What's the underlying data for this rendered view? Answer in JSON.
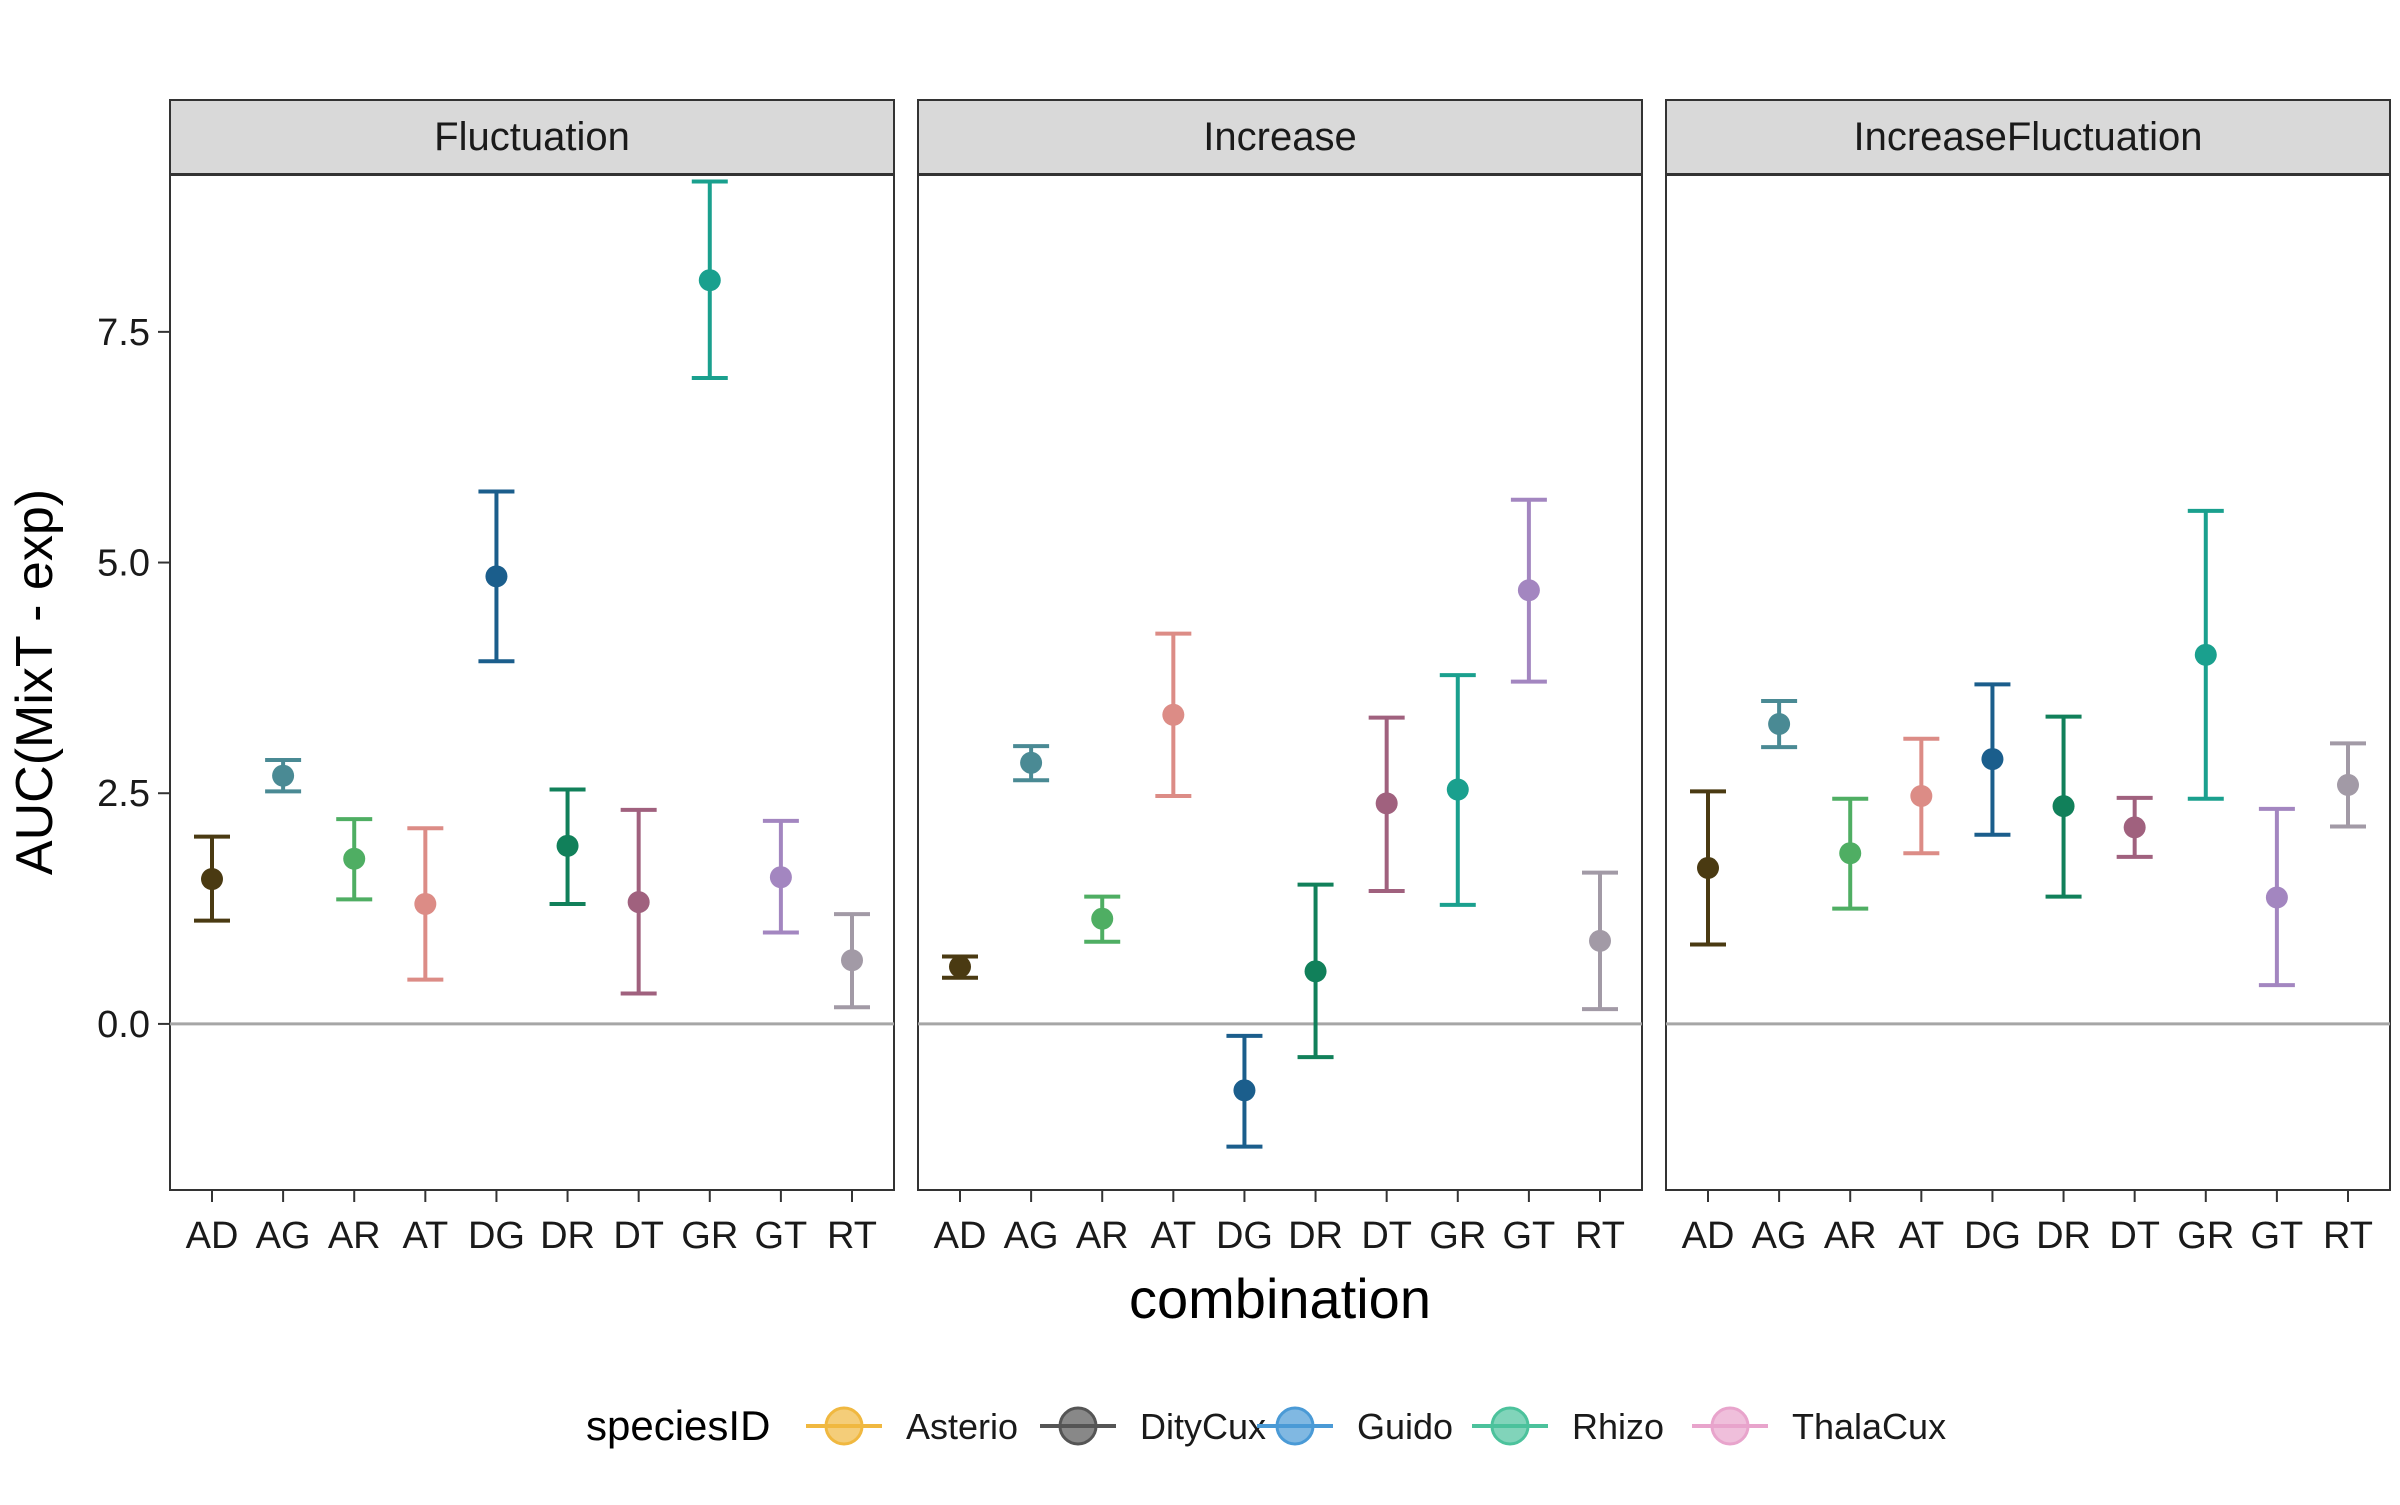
{
  "chart_data": {
    "type": "scatter",
    "subtype": "point-with-errorbars, faceted",
    "xlabel": "combination",
    "ylabel": "AUC(MixT - exp)",
    "ylim": [
      -1.8,
      9.2
    ],
    "yticks": [
      0.0,
      2.5,
      5.0,
      7.5
    ],
    "ytick_labels": [
      "0.0",
      "2.5",
      "5.0",
      "7.5"
    ],
    "reference_line_y": 0,
    "grid": false,
    "categories": [
      "AD",
      "AG",
      "AR",
      "AT",
      "DG",
      "DR",
      "DT",
      "GR",
      "GT",
      "RT"
    ],
    "category_colors": {
      "AD": "#4a3a12",
      "AG": "#4a8a94",
      "AR": "#4fae63",
      "AT": "#dc8c86",
      "DG": "#1b5e8c",
      "DR": "#11805a",
      "DT": "#a0617e",
      "GR": "#1aa08e",
      "GT": "#a386c0",
      "RT": "#a29aa6"
    },
    "legend": {
      "title": "speciesID",
      "placement": "bottom",
      "items": [
        {
          "label": "Asterio",
          "color": "#f0b840"
        },
        {
          "label": "DityCux",
          "color": "#555555"
        },
        {
          "label": "Guido",
          "color": "#4a9ad6"
        },
        {
          "label": "Rhizo",
          "color": "#4cc29c"
        },
        {
          "label": "ThalaCux",
          "color": "#e8a4cc"
        }
      ]
    },
    "facets": [
      {
        "title": "Fluctuation",
        "points": [
          {
            "x": "AD",
            "y": 1.57,
            "ymin": 1.12,
            "ymax": 2.03
          },
          {
            "x": "AG",
            "y": 2.69,
            "ymin": 2.52,
            "ymax": 2.86
          },
          {
            "x": "AR",
            "y": 1.79,
            "ymin": 1.35,
            "ymax": 2.22
          },
          {
            "x": "AT",
            "y": 1.3,
            "ymin": 0.48,
            "ymax": 2.12
          },
          {
            "x": "DG",
            "y": 4.85,
            "ymin": 3.93,
            "ymax": 5.77
          },
          {
            "x": "DR",
            "y": 1.93,
            "ymin": 1.3,
            "ymax": 2.54
          },
          {
            "x": "DT",
            "y": 1.32,
            "ymin": 0.33,
            "ymax": 2.32
          },
          {
            "x": "GR",
            "y": 8.06,
            "ymin": 7.0,
            "ymax": 9.13
          },
          {
            "x": "GT",
            "y": 1.59,
            "ymin": 0.99,
            "ymax": 2.2
          },
          {
            "x": "RT",
            "y": 0.69,
            "ymin": 0.18,
            "ymax": 1.19
          }
        ]
      },
      {
        "title": "Increase",
        "points": [
          {
            "x": "AD",
            "y": 0.62,
            "ymin": 0.5,
            "ymax": 0.73
          },
          {
            "x": "AG",
            "y": 2.83,
            "ymin": 2.64,
            "ymax": 3.01
          },
          {
            "x": "AR",
            "y": 1.14,
            "ymin": 0.89,
            "ymax": 1.38
          },
          {
            "x": "AT",
            "y": 3.35,
            "ymin": 2.47,
            "ymax": 4.23
          },
          {
            "x": "DG",
            "y": -0.72,
            "ymin": -1.33,
            "ymax": -0.13
          },
          {
            "x": "DR",
            "y": 0.57,
            "ymin": -0.36,
            "ymax": 1.51
          },
          {
            "x": "DT",
            "y": 2.39,
            "ymin": 1.44,
            "ymax": 3.32
          },
          {
            "x": "GR",
            "y": 2.54,
            "ymin": 1.29,
            "ymax": 3.78
          },
          {
            "x": "GT",
            "y": 4.7,
            "ymin": 3.71,
            "ymax": 5.68
          },
          {
            "x": "RT",
            "y": 0.9,
            "ymin": 0.16,
            "ymax": 1.64
          }
        ]
      },
      {
        "title": "IncreaseFluctuation",
        "points": [
          {
            "x": "AD",
            "y": 1.69,
            "ymin": 0.86,
            "ymax": 2.52
          },
          {
            "x": "AG",
            "y": 3.25,
            "ymin": 3.0,
            "ymax": 3.5
          },
          {
            "x": "AR",
            "y": 1.85,
            "ymin": 1.25,
            "ymax": 2.44
          },
          {
            "x": "AT",
            "y": 2.47,
            "ymin": 1.85,
            "ymax": 3.09
          },
          {
            "x": "DG",
            "y": 2.87,
            "ymin": 2.05,
            "ymax": 3.68
          },
          {
            "x": "DR",
            "y": 2.36,
            "ymin": 1.38,
            "ymax": 3.33
          },
          {
            "x": "DT",
            "y": 2.13,
            "ymin": 1.81,
            "ymax": 2.45
          },
          {
            "x": "GR",
            "y": 4.0,
            "ymin": 2.44,
            "ymax": 5.56
          },
          {
            "x": "GT",
            "y": 1.37,
            "ymin": 0.42,
            "ymax": 2.33
          },
          {
            "x": "RT",
            "y": 2.59,
            "ymin": 2.14,
            "ymax": 3.04
          }
        ]
      }
    ]
  }
}
